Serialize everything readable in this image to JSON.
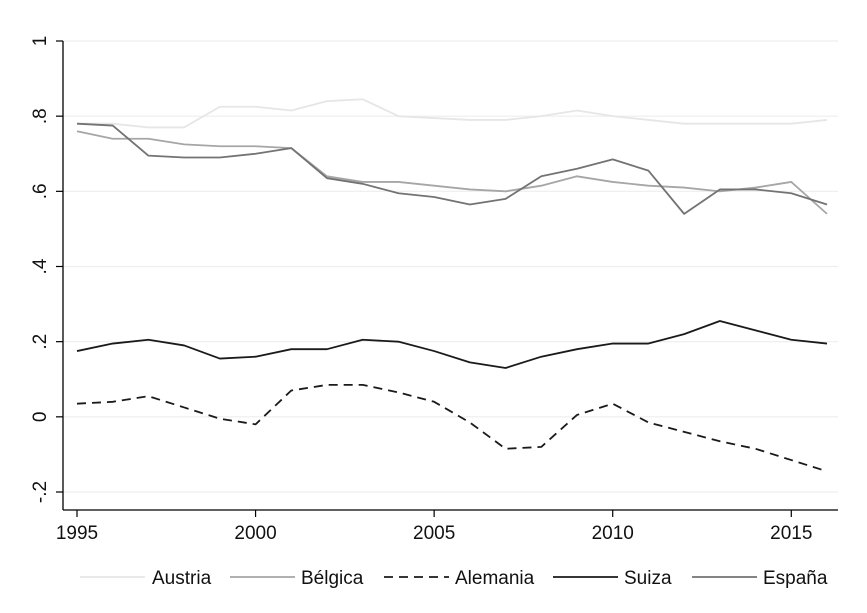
{
  "chart_data": {
    "type": "line",
    "title": "",
    "xlabel": "",
    "ylabel": "",
    "xlim": [
      1995,
      2016
    ],
    "ylim": [
      -0.2,
      1.0
    ],
    "grid": "horizontal",
    "legend_position": "bottom",
    "x_ticks": [
      {
        "value": 1995,
        "label": "1995"
      },
      {
        "value": 2000,
        "label": "2000"
      },
      {
        "value": 2005,
        "label": "2005"
      },
      {
        "value": 2010,
        "label": "2010"
      },
      {
        "value": 2015,
        "label": "2015"
      }
    ],
    "y_ticks": [
      {
        "value": -0.2,
        "label": "-.2"
      },
      {
        "value": 0,
        "label": "0"
      },
      {
        "value": 0.2,
        "label": ".2"
      },
      {
        "value": 0.4,
        "label": ".4"
      },
      {
        "value": 0.6,
        "label": ".6"
      },
      {
        "value": 0.8,
        "label": ".8"
      },
      {
        "value": 1.0,
        "label": "1"
      }
    ],
    "x": [
      1995,
      1996,
      1997,
      1998,
      1999,
      2000,
      2001,
      2002,
      2003,
      2004,
      2005,
      2006,
      2007,
      2008,
      2009,
      2010,
      2011,
      2012,
      2013,
      2014,
      2015,
      2016
    ],
    "series": [
      {
        "name": "Austria",
        "color": "#e6e6e6",
        "dash": "solid",
        "values": [
          0.78,
          0.78,
          0.77,
          0.77,
          0.825,
          0.825,
          0.815,
          0.84,
          0.845,
          0.8,
          0.795,
          0.79,
          0.79,
          0.8,
          0.815,
          0.8,
          0.79,
          0.78,
          0.78,
          0.78,
          0.78,
          0.79
        ]
      },
      {
        "name": "Bélgica",
        "color": "#a6a6a6",
        "dash": "solid",
        "values": [
          0.76,
          0.74,
          0.74,
          0.725,
          0.72,
          0.72,
          0.715,
          0.64,
          0.625,
          0.625,
          0.615,
          0.605,
          0.6,
          0.615,
          0.64,
          0.625,
          0.615,
          0.61,
          0.6,
          0.61,
          0.625,
          0.54
        ]
      },
      {
        "name": "Alemania",
        "color": "#1a1a1a",
        "dash": "dashed",
        "values": [
          0.035,
          0.04,
          0.055,
          0.025,
          -0.005,
          -0.02,
          0.07,
          0.085,
          0.085,
          0.065,
          0.04,
          -0.015,
          -0.085,
          -0.08,
          0.005,
          0.035,
          -0.015,
          -0.04,
          -0.065,
          -0.085,
          -0.115,
          -0.145
        ]
      },
      {
        "name": "Suiza",
        "color": "#1a1a1a",
        "dash": "solid",
        "values": [
          0.175,
          0.195,
          0.205,
          0.19,
          0.155,
          0.16,
          0.18,
          0.18,
          0.205,
          0.2,
          0.175,
          0.145,
          0.13,
          0.16,
          0.18,
          0.195,
          0.195,
          0.22,
          0.255,
          0.23,
          0.205,
          0.195
        ]
      },
      {
        "name": "España",
        "color": "#737373",
        "dash": "solid",
        "values": [
          0.78,
          0.775,
          0.695,
          0.69,
          0.69,
          0.7,
          0.715,
          0.635,
          0.62,
          0.595,
          0.585,
          0.565,
          0.58,
          0.64,
          0.66,
          0.685,
          0.655,
          0.54,
          0.605,
          0.605,
          0.595,
          0.565
        ]
      }
    ]
  }
}
